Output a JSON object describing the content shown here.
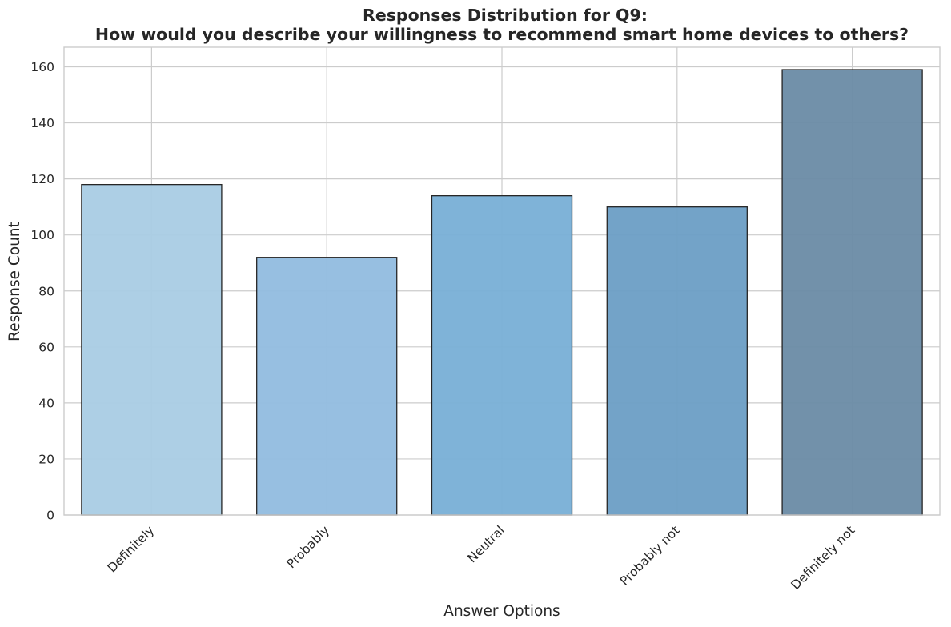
{
  "chart_data": {
    "type": "bar",
    "title_line1": "Responses Distribution for Q9:",
    "title_line2": "How would you describe your willingness to recommend smart home devices to others?",
    "xlabel": "Answer Options",
    "ylabel": "Response Count",
    "categories": [
      "Definitely",
      "Probably",
      "Neutral",
      "Probably not",
      "Definitely not"
    ],
    "values": [
      118,
      92,
      114,
      110,
      159
    ],
    "ylim": [
      0,
      167
    ],
    "yticks": [
      0,
      20,
      40,
      60,
      80,
      100,
      120,
      140,
      160
    ],
    "grid": true,
    "bar_colors": [
      "#a9cce4",
      "#91bcdf",
      "#78afd6",
      "#6b9ec5",
      "#6a8ba5"
    ],
    "bar_opacity": 0.95
  }
}
